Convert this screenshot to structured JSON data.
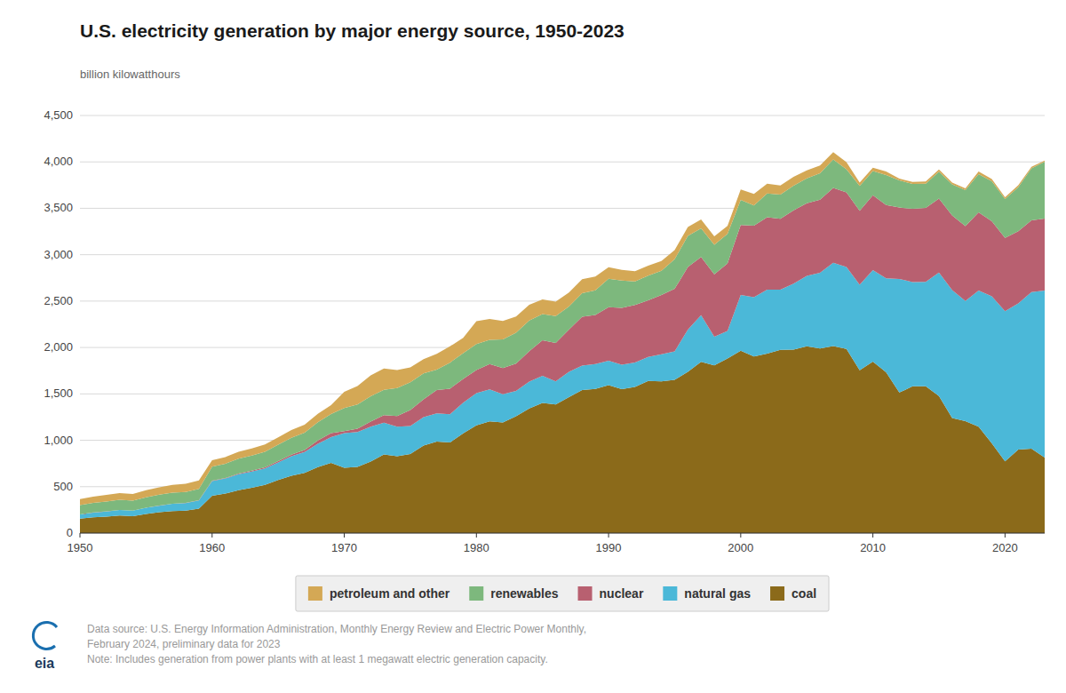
{
  "chart_data": {
    "type": "area",
    "stacked": true,
    "title": "U.S. electricity generation by major energy source, 1950-2023",
    "ylabel": "billion kilowatthours",
    "annotations": [
      "Data source: U.S. Energy Information Administration, Monthly Energy Review and Electric Power Monthly,",
      "February 2024, preliminary data for 2023",
      "Note: Includes generation from power plants with at least 1 megawatt electric generation capacity.",
      "eia"
    ],
    "x": [
      1950,
      1951,
      1952,
      1953,
      1954,
      1955,
      1956,
      1957,
      1958,
      1959,
      1960,
      1961,
      1962,
      1963,
      1964,
      1965,
      1966,
      1967,
      1968,
      1969,
      1970,
      1971,
      1972,
      1973,
      1974,
      1975,
      1976,
      1977,
      1978,
      1979,
      1980,
      1981,
      1982,
      1983,
      1984,
      1985,
      1986,
      1987,
      1988,
      1989,
      1990,
      1991,
      1992,
      1993,
      1994,
      1995,
      1996,
      1997,
      1998,
      1999,
      2000,
      2001,
      2002,
      2003,
      2004,
      2005,
      2006,
      2007,
      2008,
      2009,
      2010,
      2011,
      2012,
      2013,
      2014,
      2015,
      2016,
      2017,
      2018,
      2019,
      2020,
      2021,
      2022,
      2023
    ],
    "series": [
      {
        "name": "coal",
        "color": "#8B6A1A",
        "values": [
          155,
          171,
          178,
          188,
          181,
          207,
          225,
          238,
          242,
          263,
          403,
          425,
          463,
          488,
          519,
          571,
          617,
          649,
          710,
          756,
          704,
          713,
          771,
          848,
          828,
          853,
          944,
          985,
          976,
          1075,
          1161,
          1203,
          1192,
          1259,
          1342,
          1402,
          1386,
          1464,
          1541,
          1554,
          1594,
          1551,
          1576,
          1639,
          1635,
          1652,
          1737,
          1845,
          1807,
          1881,
          1966,
          1904,
          1933,
          1974,
          1978,
          2013,
          1990,
          2016,
          1985,
          1755,
          1847,
          1733,
          1514,
          1581,
          1581,
          1476,
          1239,
          1206,
          1146,
          966,
          774,
          899,
          909,
          815
        ]
      },
      {
        "name": "natural gas",
        "color": "#4BB8D8",
        "values": [
          45,
          50,
          55,
          60,
          60,
          65,
          70,
          78,
          82,
          90,
          158,
          163,
          172,
          175,
          178,
          190,
          210,
          225,
          253,
          278,
          373,
          375,
          376,
          341,
          319,
          300,
          305,
          305,
          305,
          330,
          346,
          346,
          305,
          273,
          290,
          292,
          249,
          273,
          264,
          268,
          264,
          264,
          263,
          259,
          291,
          307,
          455,
          503,
          309,
          296,
          601,
          639,
          691,
          649,
          710,
          760,
          816,
          897,
          882,
          920,
          987,
          1013,
          1225,
          1124,
          1126,
          1331,
          1379,
          1296,
          1468,
          1586,
          1617,
          1576,
          1689,
          1799
        ]
      },
      {
        "name": "nuclear",
        "color": "#B86070",
        "values": [
          1,
          1,
          1,
          1,
          1,
          1,
          1,
          1,
          2,
          2,
          4,
          5,
          7,
          9,
          11,
          14,
          18,
          22,
          35,
          44,
          22,
          38,
          54,
          83,
          114,
          173,
          191,
          251,
          276,
          255,
          251,
          273,
          282,
          294,
          328,
          384,
          414,
          455,
          527,
          529,
          577,
          612,
          619,
          610,
          640,
          673,
          675,
          628,
          673,
          728,
          754,
          769,
          780,
          763,
          789,
          782,
          787,
          807,
          806,
          799,
          807,
          790,
          769,
          789,
          797,
          797,
          805,
          805,
          843,
          809,
          790,
          778,
          772,
          776
        ]
      },
      {
        "name": "renewables",
        "color": "#7DB87D",
        "values": [
          100,
          103,
          107,
          109,
          107,
          113,
          117,
          118,
          118,
          121,
          150,
          154,
          160,
          163,
          168,
          177,
          183,
          186,
          197,
          205,
          248,
          260,
          274,
          272,
          301,
          300,
          280,
          220,
          280,
          280,
          279,
          261,
          309,
          332,
          331,
          281,
          290,
          250,
          252,
          265,
          305,
          295,
          255,
          266,
          260,
          319,
          335,
          309,
          319,
          319,
          270,
          218,
          257,
          263,
          267,
          268,
          285,
          306,
          248,
          268,
          260,
          323,
          294,
          268,
          260,
          290,
          334,
          388,
          410,
          430,
          419,
          475,
          560,
          612
        ]
      },
      {
        "name": "petroleum and other",
        "color": "#D4A855",
        "values": [
          65,
          68,
          70,
          72,
          73,
          76,
          80,
          85,
          88,
          91,
          70,
          72,
          74,
          76,
          78,
          80,
          83,
          86,
          90,
          95,
          175,
          198,
          225,
          230,
          195,
          160,
          155,
          170,
          175,
          165,
          246,
          225,
          198,
          175,
          170,
          160,
          155,
          150,
          152,
          148,
          126,
          115,
          110,
          108,
          105,
          98,
          97,
          95,
          90,
          87,
          111,
          124,
          105,
          98,
          95,
          85,
          84,
          80,
          76,
          36,
          37,
          37,
          18,
          23,
          26,
          24,
          21,
          21,
          30,
          24,
          20,
          20,
          17,
          12
        ]
      }
    ],
    "xlim": [
      1950,
      2023
    ],
    "xticks": [
      1950,
      1960,
      1970,
      1980,
      1990,
      2000,
      2010,
      2020
    ],
    "ylim": [
      0,
      4500
    ],
    "yticks": [
      0,
      500,
      {
        "value": 1000,
        "label": "1,000"
      },
      {
        "value": 1500,
        "label": "1,500"
      },
      {
        "value": 2000,
        "label": "2,000"
      },
      {
        "value": 2500,
        "label": "2,500"
      },
      {
        "value": 3000,
        "label": "3,000"
      },
      {
        "value": 3500,
        "label": "3,500"
      },
      {
        "value": 4000,
        "label": "4,000"
      },
      {
        "value": 4500,
        "label": "4,500"
      }
    ],
    "grid": true,
    "legend": "bottom"
  }
}
